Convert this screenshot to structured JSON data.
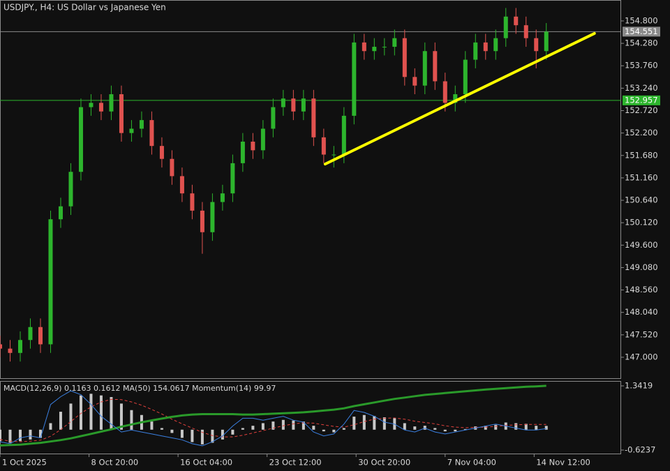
{
  "chart_data": {
    "type": "candlestick",
    "title": "USDJPY., H4:  US Dollar vs Japanese Yen",
    "up_color": "#2db52d",
    "down_color": "#e0524f",
    "x": [
      0,
      5,
      10,
      15,
      20,
      25,
      30,
      35,
      40,
      45,
      50,
      55,
      60,
      65,
      70,
      75,
      80,
      85,
      90,
      95,
      100,
      105,
      110,
      115,
      120,
      125,
      130,
      135,
      140,
      145,
      150,
      155,
      160,
      165,
      170,
      175,
      180,
      185,
      190,
      195,
      200,
      205,
      210,
      215,
      220,
      225,
      230,
      235,
      240,
      245,
      250,
      255,
      260,
      265,
      270
    ],
    "open": [
      147.3,
      147.2,
      147.1,
      147.4,
      147.7,
      147.3,
      150.2,
      150.5,
      151.3,
      152.8,
      152.9,
      152.7,
      153.1,
      152.2,
      152.3,
      152.5,
      151.9,
      151.6,
      151.2,
      150.8,
      150.4,
      149.9,
      150.6,
      150.8,
      151.5,
      152.0,
      151.8,
      152.3,
      152.8,
      153.0,
      152.7,
      153.0,
      152.1,
      151.7,
      151.7,
      152.6,
      154.3,
      154.1,
      154.2,
      154.2,
      154.4,
      153.5,
      153.3,
      154.1,
      153.4,
      152.9,
      153.1,
      153.9,
      154.3,
      154.1,
      154.4,
      154.9,
      154.7,
      154.4,
      154.1
    ],
    "high": [
      147.5,
      147.4,
      147.6,
      147.9,
      147.9,
      150.4,
      150.7,
      151.5,
      153.0,
      153.1,
      153.1,
      153.3,
      153.3,
      152.5,
      152.7,
      152.7,
      152.1,
      151.8,
      151.4,
      151.0,
      150.6,
      150.8,
      151.0,
      151.7,
      152.2,
      152.2,
      152.5,
      153.0,
      153.2,
      153.2,
      153.2,
      153.2,
      152.3,
      151.9,
      152.8,
      154.5,
      154.5,
      154.4,
      154.4,
      154.6,
      154.6,
      153.7,
      154.3,
      154.3,
      153.6,
      153.3,
      154.1,
      154.5,
      154.5,
      154.6,
      155.1,
      155.1,
      154.9,
      154.6,
      154.75
    ],
    "low": [
      147.0,
      146.9,
      146.9,
      147.2,
      147.1,
      147.1,
      150.0,
      150.3,
      151.1,
      152.6,
      152.5,
      152.5,
      152.0,
      152.0,
      152.1,
      151.7,
      151.4,
      151.0,
      150.6,
      150.2,
      149.4,
      149.7,
      150.4,
      150.6,
      151.3,
      151.6,
      151.6,
      152.1,
      152.6,
      152.5,
      152.5,
      151.9,
      151.5,
      151.4,
      151.5,
      152.4,
      153.9,
      153.9,
      154.0,
      154.0,
      153.3,
      153.1,
      153.1,
      153.2,
      152.7,
      152.7,
      152.9,
      153.7,
      153.9,
      153.9,
      154.2,
      154.5,
      154.2,
      153.7,
      153.9
    ],
    "close": [
      147.2,
      147.1,
      147.4,
      147.7,
      147.3,
      150.2,
      150.5,
      151.3,
      152.8,
      152.9,
      152.7,
      153.1,
      152.2,
      152.3,
      152.5,
      151.9,
      151.6,
      151.2,
      150.8,
      150.4,
      149.9,
      150.6,
      150.8,
      151.5,
      152.0,
      151.8,
      152.3,
      152.8,
      153.0,
      152.7,
      153.0,
      152.1,
      151.7,
      151.7,
      152.6,
      154.3,
      154.1,
      154.2,
      154.2,
      154.4,
      153.5,
      153.3,
      154.1,
      153.4,
      152.9,
      153.1,
      153.9,
      154.3,
      154.1,
      154.4,
      154.9,
      154.7,
      154.4,
      154.1,
      154.55
    ],
    "xlim": [
      0,
      307
    ],
    "ylim": [
      146.498,
      155.285
    ],
    "yticks": [
      {
        "value": 147.0,
        "label": "147.000"
      },
      {
        "value": 147.52,
        "label": "147.520"
      },
      {
        "value": 148.04,
        "label": "148.040"
      },
      {
        "value": 148.56,
        "label": "148.560"
      },
      {
        "value": 149.08,
        "label": "149.080"
      },
      {
        "value": 149.6,
        "label": "149.600"
      },
      {
        "value": 150.12,
        "label": "150.120"
      },
      {
        "value": 150.64,
        "label": "150.640"
      },
      {
        "value": 151.16,
        "label": "151.160"
      },
      {
        "value": 151.68,
        "label": "151.680"
      },
      {
        "value": 152.2,
        "label": "152.200"
      },
      {
        "value": 152.72,
        "label": "152.720"
      },
      {
        "value": 153.24,
        "label": "153.240"
      },
      {
        "value": 153.76,
        "label": "153.760"
      },
      {
        "value": 154.28,
        "label": "154.280"
      },
      {
        "value": 154.8,
        "label": "154.800"
      }
    ],
    "xticks": [
      {
        "value": 0,
        "label": "1 Oct 2025"
      },
      {
        "value": 44,
        "label": "8 Oct 20:00"
      },
      {
        "value": 88,
        "label": "16 Oct 04:00"
      },
      {
        "value": 132,
        "label": "23 Oct 12:00"
      },
      {
        "value": 176,
        "label": "30 Oct 20:00"
      },
      {
        "value": 220,
        "label": "7 Nov 04:00"
      },
      {
        "value": 264,
        "label": "14 Nov 12:00"
      }
    ],
    "levels": [
      {
        "value": 154.551,
        "color": "#8a8a8a"
      },
      {
        "value": 152.957,
        "color": "#2db52d"
      }
    ],
    "trendline": {
      "x": [
        160.7,
        293.8
      ],
      "y": [
        151.48,
        154.51
      ],
      "color": "#ffff00"
    },
    "indicator": {
      "label": "MACD(12,26,9) 0.1163 0.1612 MA(50) 154.0617 Momentum(14) 99.97",
      "ylim": [
        -0.7306,
        1.4915
      ],
      "yticks": [
        {
          "value": 1.3419,
          "label": "1.3419"
        },
        {
          "value": -0.6237,
          "label": "-0.6237"
        }
      ],
      "series": [
        {
          "style": "histogram",
          "color": "#c8c8c8",
          "values": [
            -0.35,
            -0.4,
            -0.35,
            -0.3,
            -0.25,
            0.2,
            0.55,
            0.8,
            1.05,
            1.1,
            1.05,
            1.0,
            0.8,
            0.6,
            0.45,
            0.25,
            0.05,
            -0.1,
            -0.25,
            -0.38,
            -0.45,
            -0.4,
            -0.3,
            -0.15,
            0.05,
            0.12,
            0.2,
            0.25,
            0.3,
            0.28,
            0.25,
            0.12,
            -0.05,
            -0.08,
            0.05,
            0.4,
            0.45,
            0.42,
            0.38,
            0.35,
            0.2,
            0.1,
            0.12,
            0.05,
            -0.05,
            -0.05,
            0.02,
            0.1,
            0.12,
            0.15,
            0.22,
            0.2,
            0.18,
            0.12,
            0.1163
          ]
        },
        {
          "style": "dashed",
          "color": "#e0403c",
          "values": [
            -0.3,
            -0.35,
            -0.37,
            -0.35,
            -0.32,
            -0.2,
            0.0,
            0.25,
            0.5,
            0.7,
            0.85,
            0.93,
            0.92,
            0.85,
            0.75,
            0.62,
            0.48,
            0.32,
            0.18,
            0.05,
            -0.08,
            -0.18,
            -0.22,
            -0.22,
            -0.17,
            -0.1,
            -0.03,
            0.05,
            0.12,
            0.18,
            0.21,
            0.2,
            0.15,
            0.1,
            0.08,
            0.15,
            0.25,
            0.32,
            0.35,
            0.36,
            0.32,
            0.26,
            0.22,
            0.18,
            0.12,
            0.08,
            0.06,
            0.07,
            0.08,
            0.1,
            0.13,
            0.15,
            0.16,
            0.16,
            0.1612
          ]
        },
        {
          "style": "thick",
          "color": "#2a9a2a",
          "ylim": [
            146.5,
            154.6
          ],
          "values": [
            147.4,
            147.45,
            147.5,
            147.6,
            147.7,
            147.85,
            148.0,
            148.2,
            148.45,
            148.7,
            148.95,
            149.2,
            149.5,
            149.75,
            150.0,
            150.2,
            150.4,
            150.6,
            150.75,
            150.85,
            150.9,
            150.9,
            150.9,
            150.9,
            150.85,
            150.85,
            150.9,
            150.95,
            151.0,
            151.05,
            151.1,
            151.2,
            151.3,
            151.4,
            151.55,
            151.8,
            152.0,
            152.2,
            152.4,
            152.6,
            152.75,
            152.9,
            153.05,
            153.15,
            153.25,
            153.35,
            153.45,
            153.55,
            153.65,
            153.72,
            153.8,
            153.88,
            153.95,
            154.0,
            154.0617
          ]
        },
        {
          "style": "thin",
          "color": "#3a7fe0",
          "ylim": [
            98.7,
            102.4
          ],
          "values": [
            99.3,
            99.2,
            99.5,
            99.6,
            99.5,
            101.2,
            101.6,
            101.9,
            101.7,
            101.2,
            100.6,
            100.2,
            99.8,
            99.9,
            99.8,
            99.7,
            99.6,
            99.5,
            99.4,
            99.2,
            99.1,
            99.3,
            99.6,
            100.1,
            100.5,
            100.5,
            100.4,
            100.5,
            100.6,
            100.4,
            100.3,
            99.8,
            99.6,
            99.7,
            100.2,
            100.9,
            100.8,
            100.6,
            100.3,
            100.2,
            99.9,
            99.8,
            100.0,
            99.8,
            99.7,
            99.8,
            99.9,
            100.0,
            100.1,
            100.2,
            100.1,
            100.0,
            99.9,
            99.9,
            99.97
          ]
        }
      ]
    }
  }
}
